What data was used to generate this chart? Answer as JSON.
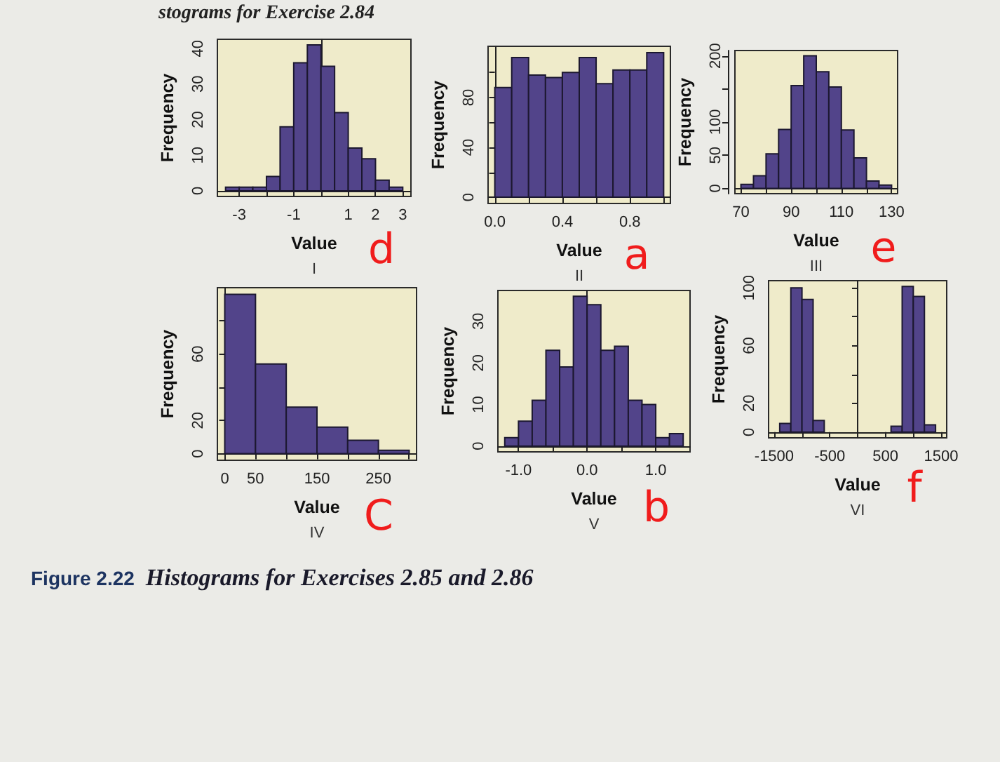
{
  "chart_data": [
    {
      "type": "histogram",
      "bins": [
        -3.5,
        -3,
        -2.5,
        -2,
        -1.5,
        -1,
        -0.5,
        0,
        0.5,
        1,
        1.5,
        2,
        2.5,
        3
      ],
      "values": [
        1,
        1,
        1,
        4,
        18,
        36,
        41,
        35,
        22,
        12,
        9,
        3,
        1
      ],
      "color": "#52448a",
      "xlim": [
        -3.8,
        3.3
      ],
      "ylim": [
        -1.6,
        42.6
      ],
      "xticks": [
        -3,
        {
          "value": -2,
          "label": null
        },
        -1,
        {
          "value": 0,
          "label": null
        },
        1,
        2,
        3
      ],
      "yticks": [
        0,
        10,
        20,
        30,
        40
      ],
      "xlabel": "Value",
      "ylabel": "Frequency",
      "subtitle": "I",
      "annotations": [
        "d",
        "stograms for Exercise 2.84"
      ]
    },
    {
      "type": "histogram",
      "bins": [
        0,
        0.1,
        0.2,
        0.3,
        0.4,
        0.5,
        0.6,
        0.7,
        0.8,
        0.9,
        1
      ],
      "values": [
        88,
        112,
        98,
        96,
        100,
        112,
        91,
        102,
        102,
        116
      ],
      "color": "#52448a",
      "xlim": [
        -0.04,
        1.04
      ],
      "ylim": [
        -5,
        121
      ],
      "xticks": [
        {
          "value": 0,
          "label": "0.0"
        },
        {
          "value": 0.2,
          "label": null
        },
        {
          "value": 0.4,
          "label": "0.4"
        },
        {
          "value": 0.6,
          "label": null
        },
        {
          "value": 0.8,
          "label": "0.8"
        },
        {
          "value": 1,
          "label": null
        }
      ],
      "yticks": [
        0,
        {
          "value": 20,
          "label": null
        },
        40,
        {
          "value": 60,
          "label": null
        },
        80,
        {
          "value": 100,
          "label": null
        }
      ],
      "xlabel": "Value",
      "ylabel": "Frequency",
      "subtitle": "II",
      "annotations": [
        "a"
      ]
    },
    {
      "type": "histogram",
      "bins": [
        70,
        75,
        80,
        85,
        90,
        95,
        100,
        105,
        110,
        115,
        120,
        125,
        130
      ],
      "values": [
        6,
        19,
        52,
        89,
        155,
        200,
        176,
        153,
        88,
        46,
        11,
        5
      ],
      "color": "#52448a",
      "xlim": [
        67.6,
        132.4
      ],
      "ylim": [
        -8,
        208
      ],
      "xticks": [
        70,
        {
          "value": 80,
          "label": null
        },
        90,
        {
          "value": 100,
          "label": null
        },
        110,
        {
          "value": 120,
          "label": null
        },
        130
      ],
      "yticks": [
        0,
        50,
        100,
        {
          "value": 150,
          "label": null
        },
        200
      ],
      "xlabel": "Value",
      "ylabel": "Frequency",
      "subtitle": "III",
      "annotations": [
        "e"
      ]
    },
    {
      "type": "histogram",
      "bins": [
        0,
        50,
        100,
        150,
        200,
        250,
        300
      ],
      "values": [
        96,
        54,
        28,
        16,
        8,
        2
      ],
      "color": "#52448a",
      "xlim": [
        -12,
        312
      ],
      "ylim": [
        -4,
        100
      ],
      "xticks": [
        0,
        50,
        {
          "value": 100,
          "label": null
        },
        150,
        {
          "value": 200,
          "label": null
        },
        250,
        {
          "value": 300,
          "label": null
        }
      ],
      "yticks": [
        0,
        20,
        {
          "value": 40,
          "label": null
        },
        60,
        {
          "value": 80,
          "label": null
        }
      ],
      "xlabel": "Value",
      "ylabel": "Frequency",
      "subtitle": "IV",
      "annotations": [
        "C",
        "Figure 2.22",
        "Histograms for Exercises 2.85 and 2.86"
      ]
    },
    {
      "type": "histogram",
      "bins": [
        -1.2,
        -1,
        -0.8,
        -0.6,
        -0.4,
        -0.2,
        0,
        0.2,
        0.4,
        0.6,
        0.8,
        1,
        1.2,
        1.4
      ],
      "values": [
        2,
        6,
        11,
        23,
        19,
        36,
        34,
        23,
        24,
        11,
        10,
        2,
        3
      ],
      "color": "#52448a",
      "xlim": [
        -1.3,
        1.5
      ],
      "ylim": [
        -1.4,
        37.4
      ],
      "xticks": [
        {
          "value": -1,
          "label": "-1.0"
        },
        {
          "value": -0.5,
          "label": null
        },
        {
          "value": 0,
          "label": "0.0"
        },
        {
          "value": 0.5,
          "label": null
        },
        {
          "value": 1,
          "label": "1.0"
        }
      ],
      "yticks": [
        0,
        10,
        20,
        30
      ],
      "xlabel": "Value",
      "ylabel": "Frequency",
      "subtitle": "V",
      "annotations": [
        "b"
      ]
    },
    {
      "type": "histogram",
      "bins": [
        -1400,
        -1200,
        -1000,
        -800,
        -600,
        -400,
        -200,
        0,
        200,
        400,
        600,
        800,
        1000,
        1200,
        1400
      ],
      "values": [
        6,
        100,
        92,
        8,
        0,
        0,
        0,
        0,
        0,
        0,
        4,
        101,
        94,
        5
      ],
      "color": "#52448a",
      "xlim": [
        -1600,
        1600
      ],
      "ylim": [
        -4,
        105
      ],
      "xticks": [
        -1500,
        {
          "value": -1000,
          "label": null
        },
        -500,
        {
          "value": 0,
          "label": null
        },
        500,
        {
          "value": 1000,
          "label": null
        },
        1500
      ],
      "yticks": [
        0,
        20,
        {
          "value": 40,
          "label": null
        },
        60,
        {
          "value": 80,
          "label": null
        },
        100
      ],
      "xlabel": "Value",
      "ylabel": "Frequency",
      "subtitle": "VI",
      "annotations": [
        "f"
      ]
    }
  ]
}
